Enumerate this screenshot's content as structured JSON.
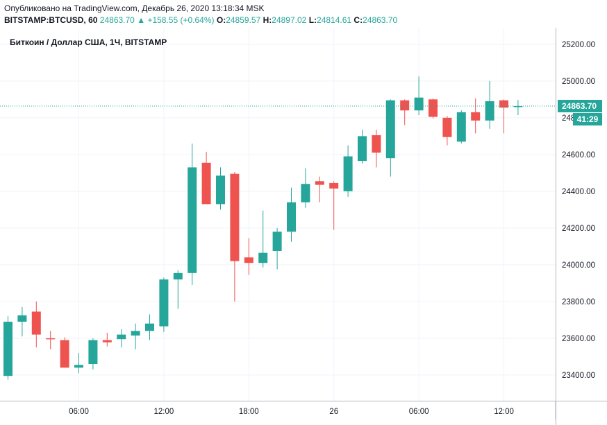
{
  "header": {
    "published": "Опубликовано на TradingView.com, Декабрь 26, 2020 13:18:34 MSK",
    "symbol": "BITSTAMP:BTCUSD, 60",
    "last": "24863.70",
    "change_arrow": "▲",
    "change": "+158.55 (+0.64%)",
    "o_label": "O:",
    "o_value": "24859.57",
    "h_label": "H:",
    "h_value": "24897.02",
    "l_label": "L:",
    "l_value": "24814.61",
    "c_label": "C:",
    "c_value": "24863.70"
  },
  "colors": {
    "up": "#26a69a",
    "down": "#ef5350",
    "grid": "#f0f3fa",
    "axis": "#b2b5be",
    "last_line": "#26a69a"
  },
  "chart_data": {
    "type": "candlestick",
    "title": "Биткоин / Доллар США, 1Ч, BITSTAMP",
    "ylim": [
      23300,
      25250
    ],
    "y_ticks": [
      23400,
      23600,
      23800,
      24000,
      24200,
      24400,
      24600,
      24800,
      25000,
      25200
    ],
    "y_tick_labels": [
      "23400.00",
      "23600.00",
      "23800.00",
      "24000.00",
      "24200.00",
      "24400.00",
      "24600.00",
      "24800.00",
      "25000.00",
      "25200.00"
    ],
    "x_labels": [
      {
        "index": 5,
        "label": "06:00"
      },
      {
        "index": 11,
        "label": "12:00"
      },
      {
        "index": 17,
        "label": "18:00"
      },
      {
        "index": 23,
        "label": "26"
      },
      {
        "index": 29,
        "label": "06:00"
      },
      {
        "index": 35,
        "label": "12:00"
      }
    ],
    "last_price": 24863.7,
    "last_price_label": "24863.70",
    "countdown_label": "41:29",
    "candles": [
      {
        "o": 23395,
        "h": 23720,
        "l": 23375,
        "c": 23690
      },
      {
        "o": 23690,
        "h": 23770,
        "l": 23610,
        "c": 23725
      },
      {
        "o": 23745,
        "h": 23800,
        "l": 23550,
        "c": 23620
      },
      {
        "o": 23600,
        "h": 23640,
        "l": 23540,
        "c": 23595
      },
      {
        "o": 23590,
        "h": 23605,
        "l": 23440,
        "c": 23440
      },
      {
        "o": 23440,
        "h": 23520,
        "l": 23410,
        "c": 23455
      },
      {
        "o": 23460,
        "h": 23600,
        "l": 23430,
        "c": 23590
      },
      {
        "o": 23590,
        "h": 23630,
        "l": 23555,
        "c": 23578
      },
      {
        "o": 23595,
        "h": 23650,
        "l": 23550,
        "c": 23620
      },
      {
        "o": 23615,
        "h": 23680,
        "l": 23540,
        "c": 23640
      },
      {
        "o": 23640,
        "h": 23730,
        "l": 23590,
        "c": 23680
      },
      {
        "o": 23665,
        "h": 23930,
        "l": 23635,
        "c": 23920
      },
      {
        "o": 23920,
        "h": 23970,
        "l": 23760,
        "c": 23955
      },
      {
        "o": 23955,
        "h": 24660,
        "l": 23890,
        "c": 24530
      },
      {
        "o": 24555,
        "h": 24615,
        "l": 24330,
        "c": 24330
      },
      {
        "o": 24330,
        "h": 24530,
        "l": 24300,
        "c": 24485
      },
      {
        "o": 24495,
        "h": 24505,
        "l": 23800,
        "c": 24020
      },
      {
        "o": 24040,
        "h": 24145,
        "l": 23945,
        "c": 24010
      },
      {
        "o": 24010,
        "h": 24295,
        "l": 23985,
        "c": 24065
      },
      {
        "o": 24075,
        "h": 24200,
        "l": 23975,
        "c": 24180
      },
      {
        "o": 24180,
        "h": 24420,
        "l": 24125,
        "c": 24340
      },
      {
        "o": 24340,
        "h": 24525,
        "l": 24310,
        "c": 24440
      },
      {
        "o": 24455,
        "h": 24480,
        "l": 24340,
        "c": 24435
      },
      {
        "o": 24445,
        "h": 24455,
        "l": 24190,
        "c": 24415
      },
      {
        "o": 24400,
        "h": 24650,
        "l": 24370,
        "c": 24590
      },
      {
        "o": 24565,
        "h": 24735,
        "l": 24550,
        "c": 24700
      },
      {
        "o": 24705,
        "h": 24735,
        "l": 24530,
        "c": 24610
      },
      {
        "o": 24580,
        "h": 24900,
        "l": 24480,
        "c": 24895
      },
      {
        "o": 24895,
        "h": 24900,
        "l": 24760,
        "c": 24840
      },
      {
        "o": 24840,
        "h": 25025,
        "l": 24815,
        "c": 24910
      },
      {
        "o": 24900,
        "h": 24905,
        "l": 24795,
        "c": 24805
      },
      {
        "o": 24800,
        "h": 24810,
        "l": 24650,
        "c": 24695
      },
      {
        "o": 24670,
        "h": 24840,
        "l": 24660,
        "c": 24830
      },
      {
        "o": 24830,
        "h": 24905,
        "l": 24715,
        "c": 24785
      },
      {
        "o": 24785,
        "h": 25000,
        "l": 24740,
        "c": 24890
      },
      {
        "o": 24895,
        "h": 24900,
        "l": 24715,
        "c": 24855
      },
      {
        "o": 24859.57,
        "h": 24897.02,
        "l": 24814.61,
        "c": 24863.7
      }
    ]
  }
}
